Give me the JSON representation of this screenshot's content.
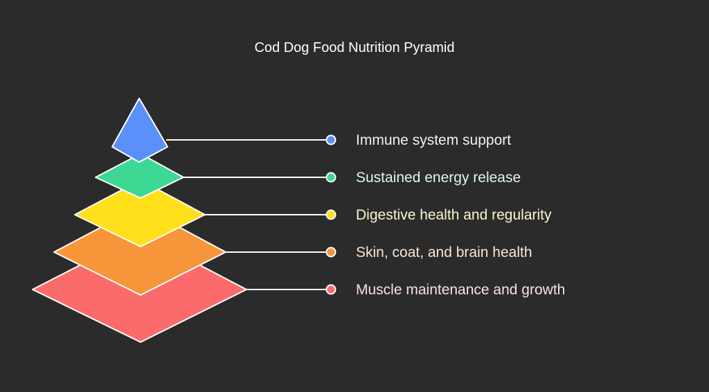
{
  "title": "Cod Dog Food Nutrition Pyramid",
  "levels": [
    {
      "label": "Immune system support",
      "fill": "#5b8ff9",
      "label_color": "#f2f2f2"
    },
    {
      "label": "Sustained energy release",
      "fill": "#3ed895",
      "label_color": "#dff7ea"
    },
    {
      "label": "Digestive health and regularity",
      "fill": "#ffe01a",
      "label_color": "#fbf5cf"
    },
    {
      "label": "Skin, coat, and brain health",
      "fill": "#f7953a",
      "label_color": "#fbe6d3"
    },
    {
      "label": "Muscle maintenance and growth",
      "fill": "#fb6b6b",
      "label_color": "#fbe0e0"
    }
  ]
}
